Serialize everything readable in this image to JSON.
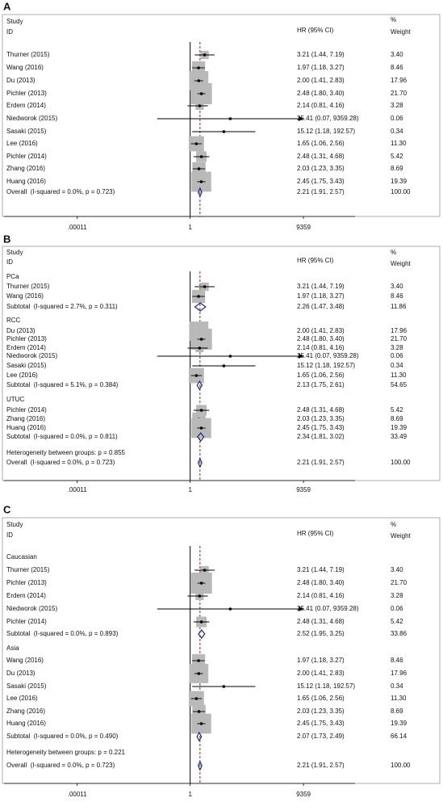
{
  "chart_data": [
    {
      "type": "forest",
      "panel": "A",
      "x_scale": "log",
      "xlim": [
        3e-07,
        600000
      ],
      "xticks": [
        {
          "value": 0.00011,
          "label": ".00011"
        },
        1,
        9359
      ],
      "headers": {
        "study": "Study",
        "id": "ID",
        "estimate": "HR (95% CI)",
        "percent": "%",
        "weight": "Weight"
      },
      "box_color": "#b9b9b9",
      "diamond_color": "#1f2a78",
      "reference_color": "#a0202a",
      "rows": [
        {
          "label": "Thurner (2015)",
          "marker": "box",
          "value": 3.21,
          "lower": 1.44,
          "upper": 7.19,
          "value_label": "3.21 (1.44, 7.19)",
          "weight": 3.4,
          "weight_label": "3.40"
        },
        {
          "label": "Wang (2016)",
          "marker": "box",
          "value": 1.97,
          "lower": 1.18,
          "upper": 3.27,
          "value_label": "1.97 (1.18, 3.27)",
          "weight": 8.46
        },
        {
          "label": "Du (2013)",
          "marker": "box",
          "value": 2,
          "lower": 1.41,
          "upper": 2.83,
          "value_label": "2.00 (1.41, 2.83)",
          "weight": 17.96
        },
        {
          "label": "Pichler (2013)",
          "marker": "box",
          "value": 2.48,
          "lower": 1.8,
          "upper": 3.4,
          "value_label": "2.48 (1.80, 3.40)",
          "weight": 21.7,
          "weight_label": "21.70"
        },
        {
          "label": "Erdem (2014)",
          "marker": "box",
          "value": 2.14,
          "lower": 0.81,
          "upper": 4.16,
          "value_label": "2.14 (0.81, 4.16)",
          "weight": 3.28
        },
        {
          "label": "Niedworok (2015)",
          "marker": "box",
          "value": 25.41,
          "lower": 0.07,
          "upper": 9359.28,
          "value_label": "25.41 (0.07, 9359.28)",
          "weight": 0.06
        },
        {
          "label": "Sasaki (2015)",
          "marker": "box",
          "value": 15.12,
          "lower": 1.18,
          "upper": 192.57,
          "value_label": "15.12 (1.18, 192.57)",
          "weight": 0.34
        },
        {
          "label": "Lee (2016)",
          "marker": "box",
          "value": 1.65,
          "lower": 1.06,
          "upper": 2.56,
          "value_label": "1.65 (1.06, 2.56)",
          "weight": 11.3,
          "weight_label": "11.30"
        },
        {
          "label": "Pichler (2014)",
          "marker": "box",
          "value": 2.48,
          "lower": 1.31,
          "upper": 4.68,
          "value_label": "2.48 (1.31, 4.68)",
          "weight": 5.42
        },
        {
          "label": "Zhang (2016)",
          "marker": "box",
          "value": 2.03,
          "lower": 1.23,
          "upper": 3.35,
          "value_label": "2.03 (1.23, 3.35)",
          "weight": 8.69
        },
        {
          "label": "Huang (2016)",
          "marker": "box",
          "value": 2.45,
          "lower": 1.75,
          "upper": 3.43,
          "value_label": "2.45 (1.75, 3.43)",
          "weight": 19.39
        },
        {
          "label": "Overall  (I-squared = 0.0%, p = 0.723)",
          "marker": "diamond",
          "value": 2.21,
          "lower": 1.91,
          "upper": 2.57,
          "value_label": "2.21 (1.91, 2.57)",
          "weight": 100,
          "weight_label": "100.00"
        }
      ]
    },
    {
      "type": "forest",
      "panel": "B",
      "x_scale": "log",
      "xlim": [
        3e-07,
        600000
      ],
      "xticks": [
        {
          "value": 0.00011,
          "label": ".00011"
        },
        1,
        9359
      ],
      "headers": {
        "study": "Study",
        "id": "ID",
        "estimate": "HR (95% CI)",
        "percent": "%",
        "weight": "Weight"
      },
      "box_color": "#b9b9b9",
      "diamond_color": "#1f2a78",
      "reference_color": "#a0202a",
      "rows": [
        {
          "label": "PCa"
        },
        {
          "label": "Thurner (2015)",
          "marker": "box",
          "value": 3.21,
          "lower": 1.44,
          "upper": 7.19,
          "value_label": "3.21 (1.44, 7.19)",
          "weight": 3.4,
          "weight_label": "3.40"
        },
        {
          "label": "Wang (2016)",
          "marker": "box",
          "value": 1.97,
          "lower": 1.18,
          "upper": 3.27,
          "value_label": "1.97 (1.18, 3.27)",
          "weight": 8.46
        },
        {
          "label": "Subtotal  (I-squared = 2.7%, p = 0.311)",
          "marker": "diamond",
          "value": 2.26,
          "lower": 1.47,
          "upper": 3.48,
          "value_label": "2.26 (1.47, 3.48)",
          "weight": 11.86
        },
        {
          "label": "RCC"
        },
        {
          "label": "Du (2013)",
          "marker": "box",
          "value": 2,
          "lower": 1.41,
          "upper": 2.83,
          "value_label": "2.00 (1.41, 2.83)",
          "weight": 17.96
        },
        {
          "label": "Pichler (2013)",
          "marker": "box",
          "value": 2.48,
          "lower": 1.8,
          "upper": 3.4,
          "value_label": "2.48 (1.80, 3.40)",
          "weight": 21.7,
          "weight_label": "21.70"
        },
        {
          "label": "Erdem (2014)",
          "marker": "box",
          "value": 2.14,
          "lower": 0.81,
          "upper": 4.16,
          "value_label": "2.14 (0.81, 4.16)",
          "weight": 3.28
        },
        {
          "label": "Niedworok (2015)",
          "marker": "box",
          "value": 25.41,
          "lower": 0.07,
          "upper": 9359.28,
          "value_label": "25.41 (0.07, 9359.28)",
          "weight": 0.06
        },
        {
          "label": "Sasaki (2015)",
          "marker": "box",
          "value": 15.12,
          "lower": 1.18,
          "upper": 192.57,
          "value_label": "15.12 (1.18, 192.57)",
          "weight": 0.34
        },
        {
          "label": "Lee (2016)",
          "marker": "box",
          "value": 1.65,
          "lower": 1.06,
          "upper": 2.56,
          "value_label": "1.65 (1.06, 2.56)",
          "weight": 11.3,
          "weight_label": "11.30"
        },
        {
          "label": "Subtotal  (I-squared = 5.1%, p = 0.384)",
          "marker": "diamond",
          "value": 2.13,
          "lower": 1.75,
          "upper": 2.61,
          "value_label": "2.13 (1.75, 2.61)",
          "weight": 54.65
        },
        {
          "label": "UTUC"
        },
        {
          "label": "Pichler (2014)",
          "marker": "box",
          "value": 2.48,
          "lower": 1.31,
          "upper": 4.68,
          "value_label": "2.48 (1.31, 4.68)",
          "weight": 5.42
        },
        {
          "label": "Zhang (2016)",
          "marker": "box",
          "value": 2.03,
          "lower": 1.23,
          "upper": 3.35,
          "value_label": "2.03 (1.23, 3.35)",
          "weight": 8.69
        },
        {
          "label": "Huang (2016)",
          "marker": "box",
          "value": 2.45,
          "lower": 1.75,
          "upper": 3.43,
          "value_label": "2.45 (1.75, 3.43)",
          "weight": 19.39
        },
        {
          "label": "Subtotal  (I-squared = 0.0%, p = 0.811)",
          "marker": "diamond",
          "value": 2.34,
          "lower": 1.81,
          "upper": 3.02,
          "value_label": "2.34 (1.81, 3.02)",
          "weight": 33.49
        },
        {
          "label": "Heterogeneity between groups: p = 0.855"
        },
        {
          "label": "Overall  (I-squared = 0.0%, p = 0.723)",
          "marker": "diamond",
          "value": 2.21,
          "lower": 1.91,
          "upper": 2.57,
          "value_label": "2.21 (1.91, 2.57)",
          "weight": 100,
          "weight_label": "100.00"
        }
      ]
    },
    {
      "type": "forest",
      "panel": "C",
      "x_scale": "log",
      "xlim": [
        3e-07,
        600000
      ],
      "xticks": [
        {
          "value": 0.00011,
          "label": ".00011"
        },
        1,
        9359
      ],
      "headers": {
        "study": "Study",
        "id": "ID",
        "estimate": "HR (95% CI)",
        "percent": "%",
        "weight": "Weight"
      },
      "box_color": "#b9b9b9",
      "diamond_color": "#1f2a78",
      "reference_color": "#a0202a",
      "rows": [
        {
          "label": "Caucasian"
        },
        {
          "label": "Thurner (2015)",
          "marker": "box",
          "value": 3.21,
          "lower": 1.44,
          "upper": 7.19,
          "value_label": "3.21 (1.44, 7.19)",
          "weight": 3.4,
          "weight_label": "3.40"
        },
        {
          "label": "Pichler (2013)",
          "marker": "box",
          "value": 2.48,
          "lower": 1.8,
          "upper": 3.4,
          "value_label": "2.48 (1.80, 3.40)",
          "weight": 21.7,
          "weight_label": "21.70"
        },
        {
          "label": "Erdem (2014)",
          "marker": "box",
          "value": 2.14,
          "lower": 0.81,
          "upper": 4.16,
          "value_label": "2.14 (0.81, 4.16)",
          "weight": 3.28
        },
        {
          "label": "Niedworok (2015)",
          "marker": "box",
          "value": 25.41,
          "lower": 0.07,
          "upper": 9359.28,
          "value_label": "25.41 (0.07, 9359.28)",
          "weight": 0.06
        },
        {
          "label": "Pichler (2014)",
          "marker": "box",
          "value": 2.48,
          "lower": 1.31,
          "upper": 4.68,
          "value_label": "2.48 (1.31, 4.68)",
          "weight": 5.42
        },
        {
          "label": "Subtotal  (I-squared = 0.0%, p = 0.893)",
          "marker": "diamond",
          "value": 2.52,
          "lower": 1.95,
          "upper": 3.25,
          "value_label": "2.52 (1.95, 3.25)",
          "weight": 33.86
        },
        {
          "label": "Asia"
        },
        {
          "label": "Wang (2016)",
          "marker": "box",
          "value": 1.97,
          "lower": 1.18,
          "upper": 3.27,
          "value_label": "1.97 (1.18, 3.27)",
          "weight": 8.46
        },
        {
          "label": "Du (2013)",
          "marker": "box",
          "value": 2,
          "lower": 1.41,
          "upper": 2.83,
          "value_label": "2.00 (1.41, 2.83)",
          "weight": 17.96
        },
        {
          "label": "Sasaki (2015)",
          "marker": "box",
          "value": 15.12,
          "lower": 1.18,
          "upper": 192.57,
          "value_label": "15.12 (1.18, 192.57)",
          "weight": 0.34
        },
        {
          "label": "Lee (2016)",
          "marker": "box",
          "value": 1.65,
          "lower": 1.06,
          "upper": 2.56,
          "value_label": "1.65 (1.06, 2.56)",
          "weight": 11.3,
          "weight_label": "11.30"
        },
        {
          "label": "Zhang (2016)",
          "marker": "box",
          "value": 2.03,
          "lower": 1.23,
          "upper": 3.35,
          "value_label": "2.03 (1.23, 3.35)",
          "weight": 8.69
        },
        {
          "label": "Huang (2016)",
          "marker": "box",
          "value": 2.45,
          "lower": 1.75,
          "upper": 3.43,
          "value_label": "2.45 (1.75, 3.43)",
          "weight": 19.39
        },
        {
          "label": "Subtotal  (I-squared = 0.0%, p = 0.490)",
          "marker": "diamond",
          "value": 2.07,
          "lower": 1.73,
          "upper": 2.49,
          "value_label": "2.07 (1.73, 2.49)",
          "weight": 66.14
        },
        {
          "label": "Heterogeneity between groups: p = 0.221"
        },
        {
          "label": "Overall  (I-squared = 0.0%, p = 0.723)",
          "marker": "diamond",
          "value": 2.21,
          "lower": 1.91,
          "upper": 2.57,
          "value_label": "2.21 (1.91, 2.57)",
          "weight": 100,
          "weight_label": "100.00"
        }
      ]
    }
  ]
}
